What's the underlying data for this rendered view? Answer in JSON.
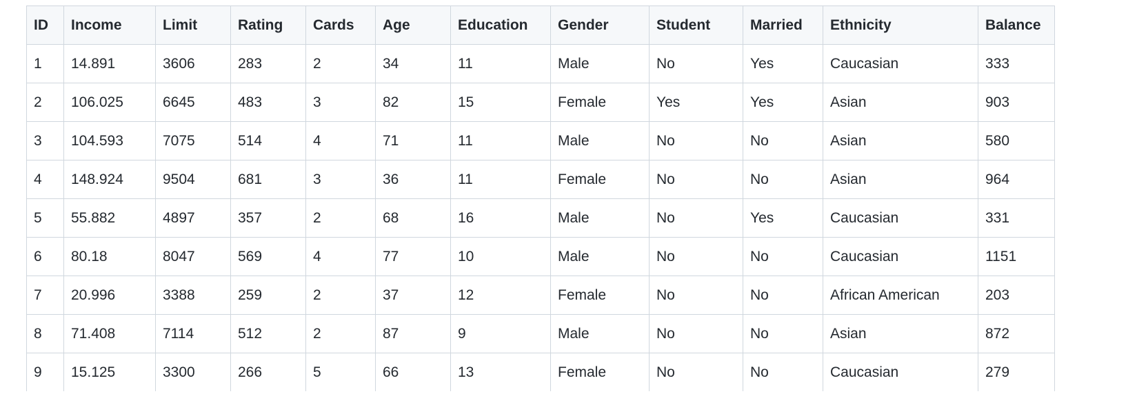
{
  "table": {
    "columns": [
      "ID",
      "Income",
      "Limit",
      "Rating",
      "Cards",
      "Age",
      "Education",
      "Gender",
      "Student",
      "Married",
      "Ethnicity",
      "Balance"
    ],
    "rows": [
      [
        "1",
        "14.891",
        "3606",
        "283",
        "2",
        "34",
        "11",
        "Male",
        "No",
        "Yes",
        "Caucasian",
        "333"
      ],
      [
        "2",
        "106.025",
        "6645",
        "483",
        "3",
        "82",
        "15",
        "Female",
        "Yes",
        "Yes",
        "Asian",
        "903"
      ],
      [
        "3",
        "104.593",
        "7075",
        "514",
        "4",
        "71",
        "11",
        "Male",
        "No",
        "No",
        "Asian",
        "580"
      ],
      [
        "4",
        "148.924",
        "9504",
        "681",
        "3",
        "36",
        "11",
        "Female",
        "No",
        "No",
        "Asian",
        "964"
      ],
      [
        "5",
        "55.882",
        "4897",
        "357",
        "2",
        "68",
        "16",
        "Male",
        "No",
        "Yes",
        "Caucasian",
        "331"
      ],
      [
        "6",
        "80.18",
        "8047",
        "569",
        "4",
        "77",
        "10",
        "Male",
        "No",
        "No",
        "Caucasian",
        "1151"
      ],
      [
        "7",
        "20.996",
        "3388",
        "259",
        "2",
        "37",
        "12",
        "Female",
        "No",
        "No",
        "African American",
        "203"
      ],
      [
        "8",
        "71.408",
        "7114",
        "512",
        "2",
        "87",
        "9",
        "Male",
        "No",
        "No",
        "Asian",
        "872"
      ],
      [
        "9",
        "15.125",
        "3300",
        "266",
        "5",
        "66",
        "13",
        "Female",
        "No",
        "No",
        "Caucasian",
        "279"
      ]
    ]
  }
}
